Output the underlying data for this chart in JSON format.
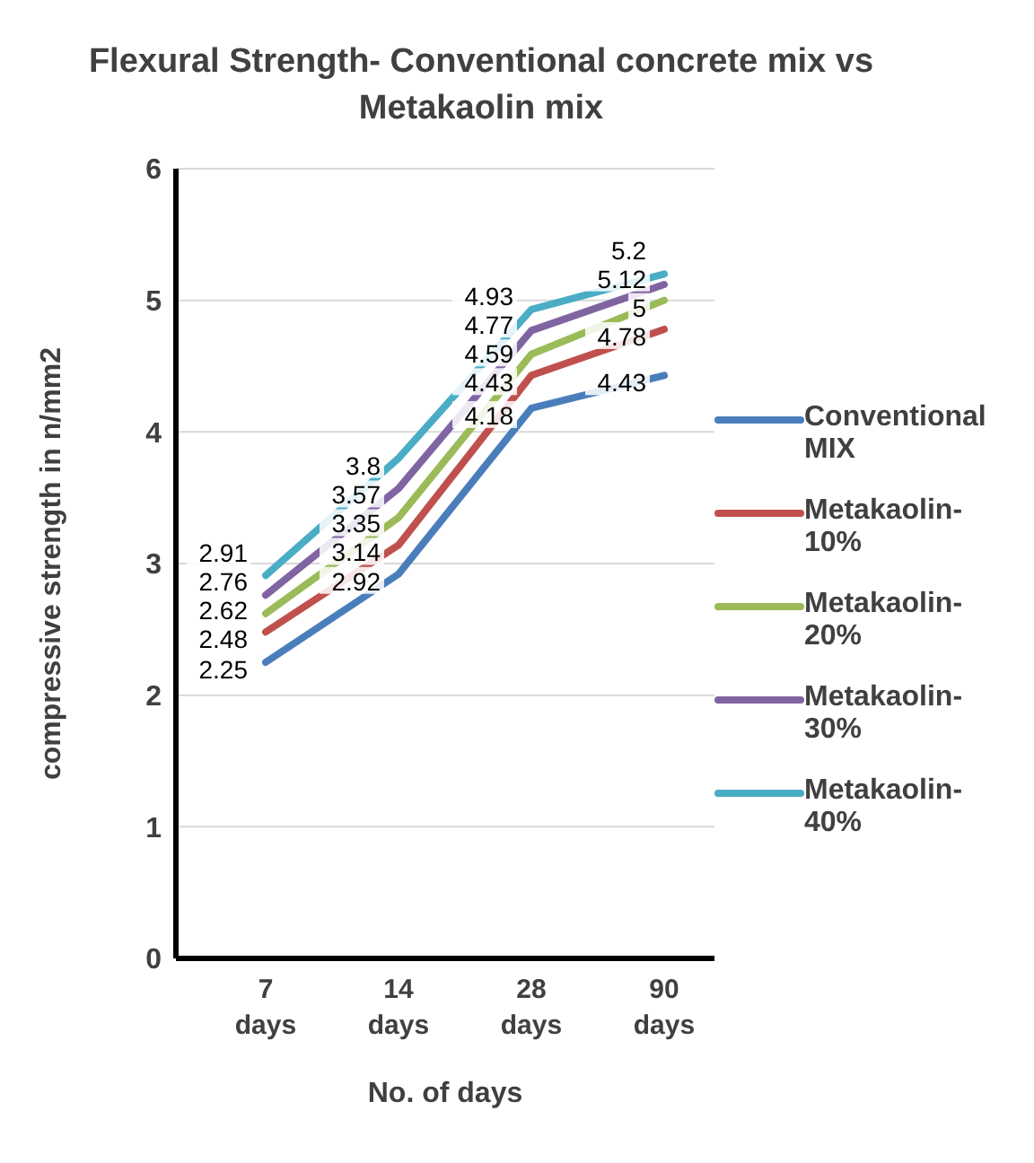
{
  "chart_data": {
    "type": "line",
    "title": "Flexural Strength- Conventional concrete mix vs Metakaolin mix",
    "xlabel": "No. of days",
    "ylabel": "compressive strength in n/mm2",
    "categories": [
      "7 days",
      "14 days",
      "28 days",
      "90 days"
    ],
    "series": [
      {
        "name": "Conventional MIX",
        "color": "#4a7ebb",
        "values": [
          2.25,
          2.92,
          4.18,
          4.43
        ]
      },
      {
        "name": "Metakaolin-10%",
        "color": "#c0504d",
        "values": [
          2.48,
          3.14,
          4.43,
          4.78
        ]
      },
      {
        "name": "Metakaolin-20%",
        "color": "#9bbb59",
        "values": [
          2.62,
          3.35,
          4.59,
          5
        ]
      },
      {
        "name": "Metakaolin-30%",
        "color": "#8064a2",
        "values": [
          2.76,
          3.57,
          4.77,
          5.12
        ]
      },
      {
        "name": "Metakaolin-40%",
        "color": "#4bacc6",
        "values": [
          2.91,
          3.8,
          4.93,
          5.2
        ]
      }
    ],
    "ylim": [
      0,
      6
    ],
    "yticks": [
      0,
      1,
      2,
      3,
      4,
      5,
      6
    ],
    "grid": "y",
    "legend": "right",
    "data_labels": true,
    "marker": "none",
    "line_style": "solid"
  }
}
